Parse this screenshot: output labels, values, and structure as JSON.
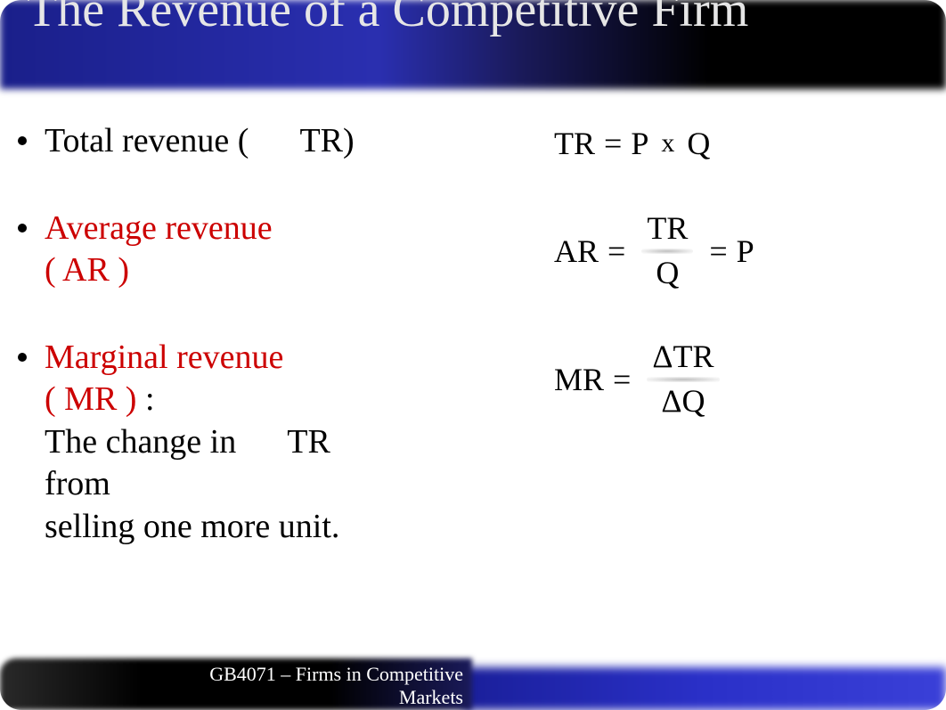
{
  "title": "The Revenue of a Competitive Firm",
  "bullets": {
    "b1_left": "Total revenue (",
    "b1_right": "TR)",
    "b2_line1": "Average revenue",
    "b2_line2": "( AR )",
    "b3_line1": "Marginal revenue",
    "b3_line2_left": "( MR )",
    "b3_line2_colon": ":",
    "b3_line3_left": "The change in",
    "b3_line3_right": "TR",
    "b3_line4": "from",
    "b3_line5": "selling one more unit."
  },
  "formulas": {
    "tr_label": "TR",
    "eq": "=",
    "P": "P",
    "x": "x",
    "Q": "Q",
    "ar_label": "AR",
    "TRtop": "TR",
    "Qbot": "Q",
    "mr_label": "MR",
    "dTR": "ΔTR",
    "dQ": "ΔQ"
  },
  "footer": "GB4071 – Firms in Competitive Markets",
  "colors": {
    "red": "#cc0000",
    "title_text": "#e6e6e6",
    "header_grad_start": "#1a1f8a",
    "header_grad_end": "#000000",
    "footer_left_bg": "#000000",
    "footer_right_bg": "#2a30c8",
    "body_bg": "#ffffff"
  },
  "fonts": {
    "title_size_pt": 42,
    "body_size_pt": 28,
    "formula_size_pt": 27,
    "footer_size_pt": 16
  }
}
